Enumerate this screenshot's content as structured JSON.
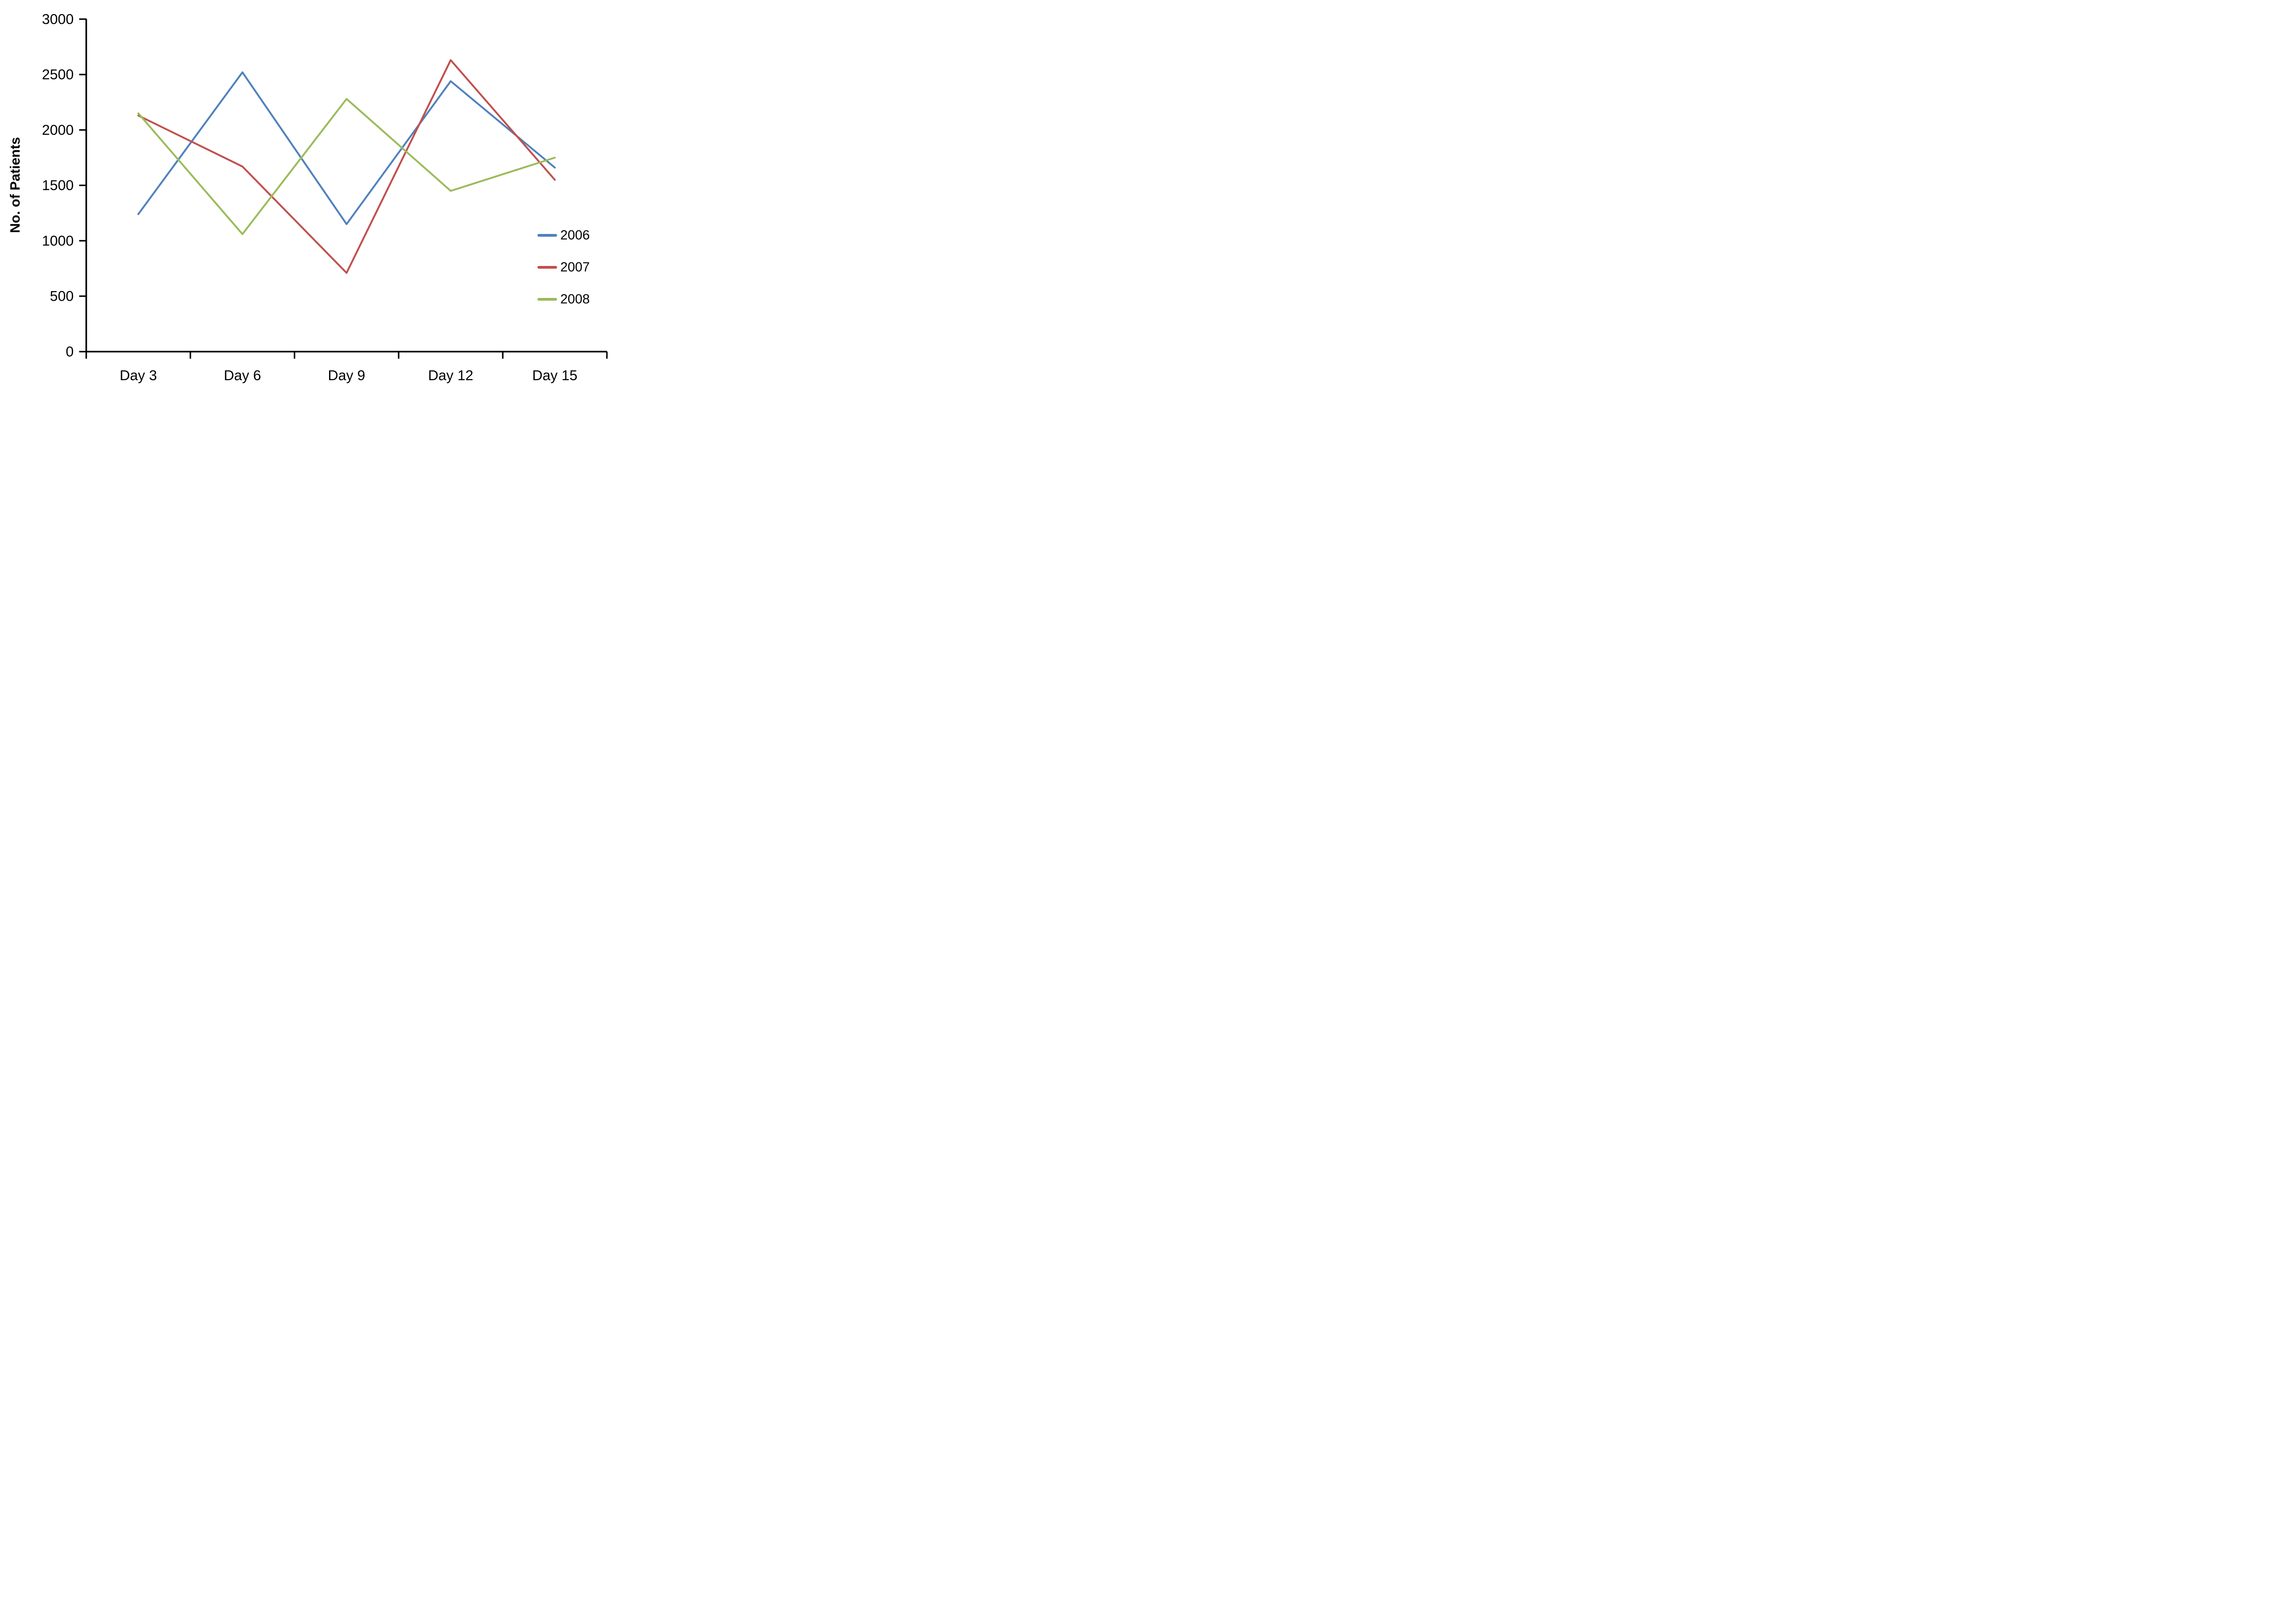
{
  "chart_data": {
    "type": "line",
    "title": "",
    "xlabel": "",
    "ylabel": "No. of Patients",
    "categories": [
      "Day 3",
      "Day 6",
      "Day 9",
      "Day 12",
      "Day 15"
    ],
    "series": [
      {
        "name": "2006",
        "color": "#4F81BD",
        "values": [
          1240,
          2520,
          1150,
          2440,
          1660
        ]
      },
      {
        "name": "2007",
        "color": "#C0504D",
        "values": [
          2130,
          1670,
          710,
          2630,
          1550
        ]
      },
      {
        "name": "2008",
        "color": "#9BBB59",
        "values": [
          2150,
          1060,
          2280,
          1450,
          1750
        ]
      }
    ],
    "ylim": [
      0,
      3000
    ],
    "ytick_step": 500,
    "ytick_labels": [
      "0",
      "500",
      "1000",
      "1500",
      "2000",
      "2500",
      "3000"
    ],
    "grid": false,
    "legend_position": "middle-right",
    "axis_color": "#000000",
    "text_color": "#000000"
  }
}
